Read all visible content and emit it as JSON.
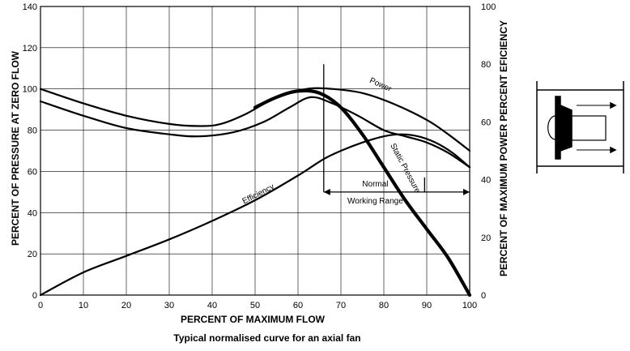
{
  "caption": "Typical normalised curve for an axial fan",
  "chart_data": {
    "type": "line",
    "title": "",
    "xlabel": "PERCENT OF MAXIMUM FLOW",
    "ylabel_left": "PERCENT OF PRESSURE AT ZERO FLOW",
    "ylabel_right": "PERCENT OF MAXIMUM POWER PERCENT EFICIENCY",
    "xlim": [
      0,
      100
    ],
    "ylim_left": [
      0,
      140
    ],
    "ylim_right": [
      0,
      100
    ],
    "x_ticks": [
      "0",
      "10",
      "20",
      "30",
      "40",
      "50",
      "60",
      "70",
      "80",
      "90",
      "100"
    ],
    "y_ticks_left": [
      "0",
      "20",
      "40",
      "60",
      "80",
      "100",
      "120",
      "140"
    ],
    "y_ticks_right": [
      "0",
      "20",
      "40",
      "60",
      "80",
      "100"
    ],
    "grid": true,
    "series": [
      {
        "name": "Power",
        "axis": "left",
        "weight": "medium",
        "x": [
          0,
          10,
          20,
          30,
          37,
          42,
          48,
          55,
          62,
          68,
          75,
          82,
          90,
          95,
          100
        ],
        "y": [
          100,
          93,
          87,
          83,
          82,
          83,
          88,
          96,
          100,
          100,
          98,
          93,
          85,
          78,
          70
        ]
      },
      {
        "name": "",
        "axis": "left",
        "weight": "medium",
        "x": [
          0,
          10,
          20,
          30,
          37,
          45,
          52,
          58,
          63,
          68,
          74,
          80,
          85,
          90,
          95,
          100
        ],
        "y": [
          94,
          87,
          81,
          78,
          77,
          79,
          84,
          91,
          96,
          93,
          87,
          80,
          77,
          74,
          69,
          62
        ]
      },
      {
        "name": "Static Pressure",
        "axis": "left",
        "weight": "heavy",
        "x": [
          50,
          55,
          60,
          65,
          70,
          75,
          80,
          85,
          90,
          95,
          100
        ],
        "y": [
          91,
          96,
          99,
          98,
          91,
          78,
          62,
          46,
          32,
          18,
          0
        ]
      },
      {
        "name": "Efficiency",
        "axis": "left",
        "weight": "medium",
        "x": [
          0,
          10,
          20,
          30,
          40,
          50,
          60,
          66,
          70,
          75,
          80,
          84,
          88,
          92,
          96,
          100
        ],
        "y": [
          0,
          11,
          19,
          27,
          36,
          46,
          58,
          66,
          70,
          74,
          77,
          78,
          77,
          74,
          69,
          62
        ]
      }
    ],
    "working_range": {
      "label_top": "Normal",
      "label_bottom": "Working Range",
      "x": [
        66,
        100
      ],
      "y": 50
    },
    "marker_line": {
      "x": 66,
      "y": [
        50,
        112
      ]
    }
  }
}
